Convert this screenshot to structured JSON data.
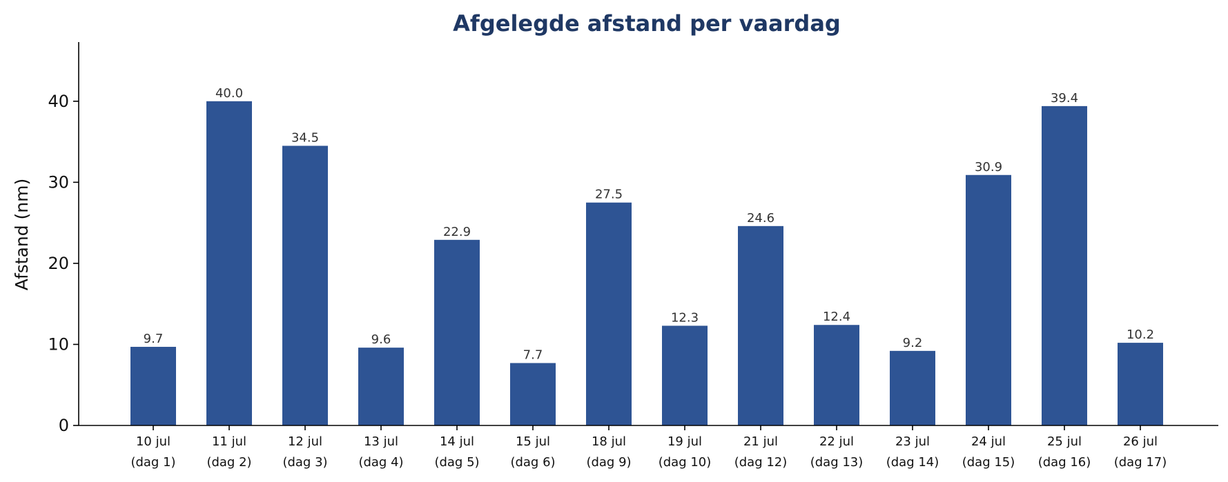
{
  "chart_data": {
    "type": "bar",
    "title": "Afgelegde afstand per vaardag",
    "xlabel": "",
    "ylabel": "Afstand (nm)",
    "ylim": [
      0,
      47.3
    ],
    "yticks": [
      0,
      10,
      20,
      30,
      40
    ],
    "grid": false,
    "bar_color": "#2e5494",
    "categories": [
      [
        "10 jul",
        "(dag 1)"
      ],
      [
        "11 jul",
        "(dag 2)"
      ],
      [
        "12 jul",
        "(dag 3)"
      ],
      [
        "13 jul",
        "(dag 4)"
      ],
      [
        "14 jul",
        "(dag 5)"
      ],
      [
        "15 jul",
        "(dag 6)"
      ],
      [
        "18 jul",
        "(dag 9)"
      ],
      [
        "19 jul",
        "(dag 10)"
      ],
      [
        "21 jul",
        "(dag 12)"
      ],
      [
        "22 jul",
        "(dag 13)"
      ],
      [
        "23 jul",
        "(dag 14)"
      ],
      [
        "24 jul",
        "(dag 15)"
      ],
      [
        "25 jul",
        "(dag 16)"
      ],
      [
        "26 jul",
        "(dag 17)"
      ]
    ],
    "values": [
      9.7,
      40.0,
      34.5,
      9.6,
      22.9,
      7.7,
      27.5,
      12.3,
      24.6,
      12.4,
      9.2,
      30.9,
      39.4,
      10.2
    ],
    "value_labels": [
      "9.7",
      "40.0",
      "34.5",
      "9.6",
      "22.9",
      "7.7",
      "27.5",
      "12.3",
      "24.6",
      "12.4",
      "9.2",
      "30.9",
      "39.4",
      "10.2"
    ]
  }
}
